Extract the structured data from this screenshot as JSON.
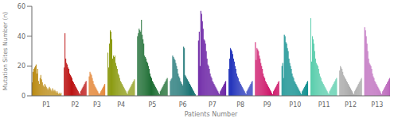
{
  "chart_data": {
    "type": "bar",
    "title": "",
    "xlabel": "Patients Number",
    "ylabel": "Mutation Sites Number (n)",
    "ylim": [
      0,
      60
    ],
    "yticks": [
      0,
      20,
      40,
      60
    ],
    "grid": false,
    "categories": [
      null,
      null,
      null,
      null,
      null,
      null,
      null,
      null,
      null,
      null,
      null,
      null,
      null,
      null,
      null,
      null,
      null,
      null,
      "P1",
      null,
      null,
      null,
      null,
      null,
      null,
      null,
      null,
      null,
      null,
      null,
      null,
      null,
      null,
      null,
      null,
      null,
      null,
      null,
      null,
      null,
      null,
      null,
      null,
      null,
      null,
      null,
      null,
      null,
      null,
      null,
      null,
      null,
      "P2",
      null,
      null,
      null,
      null,
      null,
      null,
      null,
      null,
      null,
      null,
      null,
      null,
      null,
      null,
      null,
      null,
      null,
      null,
      null,
      null,
      null,
      null,
      null,
      null,
      "P3",
      null,
      null,
      null,
      null,
      null,
      null,
      null,
      null,
      null,
      null,
      null,
      null,
      null,
      null,
      null,
      null,
      null,
      null,
      null,
      null,
      null,
      null,
      null,
      null,
      null,
      null,
      null,
      "P4",
      null,
      null,
      null,
      null,
      null,
      null,
      null,
      null,
      null,
      null,
      null,
      null,
      null,
      null,
      null,
      null,
      null,
      null,
      null,
      null,
      null,
      null,
      null,
      null,
      null,
      null,
      null,
      null,
      null,
      null,
      null,
      null,
      null,
      null,
      null,
      null,
      "P5",
      null,
      null,
      null,
      null,
      null,
      null,
      null,
      null,
      null,
      null,
      null,
      null,
      null,
      null,
      null,
      null,
      null,
      null,
      null,
      null,
      null,
      null,
      null,
      null,
      null,
      null,
      null,
      null,
      null,
      null,
      null,
      null,
      null,
      null,
      null,
      "P6",
      null,
      null,
      null,
      null,
      null,
      null,
      null,
      null,
      null,
      null,
      null,
      null,
      null,
      null,
      null,
      null,
      null,
      null,
      null,
      null,
      null,
      null,
      null,
      null,
      null,
      null,
      null,
      null,
      null,
      null,
      null,
      null,
      null,
      null,
      "P7",
      null,
      null,
      null,
      null,
      null,
      null,
      null,
      null,
      null,
      null,
      null,
      null,
      null,
      null,
      null,
      null,
      null,
      null,
      null,
      null,
      null,
      null,
      null,
      null,
      null,
      null,
      null,
      null,
      null,
      null,
      null,
      null,
      "P8",
      null,
      null,
      null,
      null,
      null,
      null,
      null,
      null,
      null,
      null,
      null,
      null,
      null,
      null,
      null,
      null,
      null,
      null,
      null,
      null,
      null,
      null,
      null,
      null,
      null,
      null,
      null,
      null,
      null,
      null,
      "P9",
      null,
      null,
      null,
      null,
      null,
      null,
      null,
      null,
      null,
      null,
      null,
      null,
      null,
      null,
      null,
      null,
      null,
      null,
      null,
      null,
      null,
      null,
      null,
      null,
      null,
      null,
      null,
      null,
      null,
      null,
      null,
      null,
      "P10",
      null,
      null,
      null,
      null,
      null,
      null,
      null,
      null,
      null,
      null,
      null,
      null,
      null,
      null,
      null,
      null,
      null,
      null,
      null,
      null,
      null,
      null,
      null,
      null,
      null,
      null,
      null,
      null,
      null,
      null,
      null,
      null,
      null,
      "P11",
      null,
      null,
      null,
      null,
      null,
      null,
      null,
      null,
      null,
      null,
      null,
      null,
      null,
      null,
      null,
      null,
      null,
      null,
      null,
      null,
      null,
      null,
      null,
      null,
      null,
      null,
      null,
      null,
      null,
      null,
      "P12",
      null,
      null,
      null,
      null,
      null,
      null,
      null,
      null,
      null,
      null,
      null,
      null,
      null,
      null,
      null,
      null,
      null,
      null,
      null,
      null,
      null,
      null,
      null,
      null,
      null,
      null,
      null,
      null,
      null,
      null,
      "P13",
      null,
      null,
      null,
      null,
      null,
      null,
      null,
      null,
      null,
      null,
      null,
      null,
      null,
      null,
      null,
      null
    ],
    "values": [
      9,
      16,
      18,
      19,
      20,
      21,
      15,
      18,
      10,
      8,
      12,
      14,
      11,
      9,
      7,
      6,
      8,
      7,
      6,
      5,
      4,
      5,
      6,
      5,
      4,
      3,
      5,
      4,
      3,
      4,
      3,
      2,
      3,
      2,
      1,
      2,
      1,
      2,
      19,
      42,
      25,
      22,
      21,
      19,
      18,
      15,
      14,
      13,
      12,
      10,
      9,
      8,
      7,
      6,
      5,
      4,
      3,
      2,
      1,
      3,
      4,
      5,
      6,
      7,
      8,
      9,
      10,
      13,
      16,
      15,
      14,
      12,
      10,
      8,
      7,
      6,
      5,
      4,
      3,
      2,
      1,
      2,
      3,
      4,
      5,
      6,
      7,
      8,
      29,
      19,
      35,
      44,
      43,
      38,
      25,
      27,
      26,
      27,
      22,
      20,
      18,
      15,
      14,
      12,
      10,
      9,
      8,
      7,
      6,
      5,
      4,
      3,
      2,
      1,
      3,
      4,
      5,
      6,
      7,
      8,
      9,
      10,
      11,
      40,
      42,
      45,
      44,
      43,
      51,
      41,
      38,
      35,
      27,
      26,
      25,
      23,
      22,
      20,
      18,
      15,
      13,
      12,
      10,
      9,
      8,
      7,
      6,
      5,
      4,
      3,
      2,
      1,
      3,
      4,
      5,
      6,
      7,
      8,
      9,
      10,
      11,
      12,
      10,
      11,
      12,
      27,
      26,
      25,
      24,
      22,
      20,
      18,
      15,
      13,
      12,
      10,
      9,
      8,
      7,
      33,
      32,
      14,
      13,
      12,
      11,
      10,
      9,
      8,
      7,
      6,
      5,
      4,
      3,
      2,
      1,
      37,
      43,
      20,
      57,
      55,
      50,
      45,
      38,
      37,
      35,
      30,
      25,
      21,
      20,
      18,
      15,
      13,
      12,
      10,
      9,
      8,
      7,
      6,
      5,
      4,
      3,
      2,
      1,
      3,
      4,
      5,
      6,
      7,
      8,
      9,
      10,
      18,
      25,
      32,
      31,
      30,
      28,
      25,
      23,
      20,
      18,
      15,
      13,
      12,
      10,
      9,
      8,
      7,
      6,
      5,
      4,
      3,
      2,
      1,
      3,
      4,
      5,
      6,
      7,
      8,
      9,
      10,
      36,
      24,
      32,
      31,
      30,
      27,
      25,
      22,
      20,
      18,
      15,
      13,
      12,
      10,
      9,
      8,
      7,
      6,
      5,
      4,
      3,
      2,
      1,
      3,
      4,
      5,
      6,
      7,
      8,
      9,
      10,
      20,
      22,
      12,
      41,
      40,
      36,
      35,
      32,
      30,
      25,
      22,
      20,
      18,
      15,
      13,
      12,
      10,
      9,
      8,
      7,
      6,
      5,
      4,
      3,
      2,
      1,
      3,
      4,
      5,
      6,
      7,
      8,
      9,
      10,
      52,
      23,
      40,
      38,
      35,
      30,
      25,
      22,
      21,
      20,
      18,
      15,
      13,
      12,
      10,
      9,
      8,
      7,
      6,
      5,
      4,
      3,
      2,
      1,
      3,
      4,
      5,
      6,
      7,
      8,
      9,
      10,
      11,
      12,
      17,
      20,
      19,
      18,
      16,
      14,
      13,
      12,
      11,
      10,
      9,
      8,
      7,
      6,
      5,
      4,
      3,
      2,
      1,
      3,
      4,
      5,
      6,
      7,
      8,
      9,
      10,
      11,
      12,
      46,
      44,
      40,
      35,
      30,
      25,
      22,
      21,
      20,
      18,
      15,
      13,
      12,
      10,
      9,
      8,
      7,
      6,
      5,
      4,
      3,
      2,
      1,
      3,
      4,
      5,
      6,
      7,
      8,
      9,
      10,
      11,
      12
    ],
    "colors": [
      "#b8860b",
      "#b8860b",
      "#b8860b",
      "#b8860b",
      "#b8860b",
      "#b8860b",
      "#b8860b",
      "#b8860b",
      "#b8860b",
      "#b8860b",
      "#b8860b",
      "#b8860b",
      "#b8860b",
      "#b8860b",
      "#b8860b",
      "#b8860b",
      "#b8860b",
      "#b8860b",
      "#b8860b",
      "#b8860b",
      "#b8860b",
      "#b8860b",
      "#b8860b",
      "#b8860b",
      "#b8860b",
      "#b8860b",
      "#b8860b",
      "#b8860b",
      "#b8860b",
      "#b8860b",
      "#b8860b",
      "#b8860b",
      "#b8860b",
      "#b8860b",
      "#b8860b",
      "#b8860b",
      "#b8860b",
      "#b8860b",
      "#bb1111",
      "#bb1111",
      "#bb1111",
      "#bb1111",
      "#bb1111",
      "#bb1111",
      "#bb1111",
      "#bb1111",
      "#bb1111",
      "#bb1111",
      "#bb1111",
      "#bb1111",
      "#bb1111",
      "#bb1111",
      "#bb1111",
      "#bb1111",
      "#bb1111",
      "#bb1111",
      "#bb1111",
      "#bb1111",
      "#bb1111",
      "#bb1111",
      "#bb1111",
      "#bb1111",
      "#bb1111",
      "#bb1111",
      "#bb1111",
      "#bb1111",
      "#bb1111",
      "#e07820",
      "#e07820",
      "#e07820",
      "#e07820",
      "#e07820",
      "#e07820",
      "#e07820",
      "#e07820",
      "#e07820",
      "#e07820",
      "#e07820",
      "#e07820",
      "#e07820",
      "#e07820",
      "#e07820",
      "#e07820",
      "#e07820",
      "#e07820",
      "#e07820",
      "#e07820",
      "#e07820",
      "#8b9a10",
      "#8b9a10",
      "#8b9a10",
      "#8b9a10",
      "#8b9a10",
      "#8b9a10",
      "#8b9a10",
      "#8b9a10",
      "#8b9a10",
      "#8b9a10",
      "#8b9a10",
      "#8b9a10",
      "#8b9a10",
      "#8b9a10",
      "#8b9a10",
      "#8b9a10",
      "#8b9a10",
      "#8b9a10",
      "#8b9a10",
      "#8b9a10",
      "#8b9a10",
      "#8b9a10",
      "#8b9a10",
      "#8b9a10",
      "#8b9a10",
      "#8b9a10",
      "#8b9a10",
      "#8b9a10",
      "#8b9a10",
      "#8b9a10",
      "#8b9a10",
      "#8b9a10",
      "#8b9a10",
      "#8b9a10",
      "#8b9a10",
      "#1a6b30",
      "#1a6b30",
      "#1a6b30",
      "#1a6b30",
      "#1a6b30",
      "#1a6b30",
      "#1a6b30",
      "#1a6b30",
      "#1a6b30",
      "#1a6b30",
      "#1a6b30",
      "#1a6b30",
      "#1a6b30",
      "#1a6b30",
      "#1a6b30",
      "#1a6b30",
      "#1a6b30",
      "#1a6b30",
      "#1a6b30",
      "#1a6b30",
      "#1a6b30",
      "#1a6b30",
      "#1a6b30",
      "#1a6b30",
      "#1a6b30",
      "#1a6b30",
      "#1a6b30",
      "#1a6b30",
      "#1a6b30",
      "#1a6b30",
      "#1a6b30",
      "#1a6b30",
      "#1a6b30",
      "#1a6b30",
      "#1a6b30",
      "#1a6b30",
      "#1a6b30",
      "#1a6b30",
      "#1a6b30",
      "#157070",
      "#157070",
      "#157070",
      "#157070",
      "#157070",
      "#157070",
      "#157070",
      "#157070",
      "#157070",
      "#157070",
      "#157070",
      "#157070",
      "#157070",
      "#157070",
      "#157070",
      "#157070",
      "#157070",
      "#157070",
      "#157070",
      "#157070",
      "#157070",
      "#157070",
      "#157070",
      "#157070",
      "#157070",
      "#157070",
      "#157070",
      "#157070",
      "#157070",
      "#157070",
      "#157070",
      "#157070",
      "#157070",
      "#5a0a9a",
      "#5a0a9a",
      "#5a0a9a",
      "#5a0a9a",
      "#5a0a9a",
      "#5a0a9a",
      "#5a0a9a",
      "#5a0a9a",
      "#5a0a9a",
      "#5a0a9a",
      "#5a0a9a",
      "#5a0a9a",
      "#5a0a9a",
      "#5a0a9a",
      "#5a0a9a",
      "#5a0a9a",
      "#5a0a9a",
      "#5a0a9a",
      "#5a0a9a",
      "#5a0a9a",
      "#5a0a9a",
      "#5a0a9a",
      "#5a0a9a",
      "#5a0a9a",
      "#5a0a9a",
      "#5a0a9a",
      "#5a0a9a",
      "#5a0a9a",
      "#5a0a9a",
      "#5a0a9a",
      "#5a0a9a",
      "#5a0a9a",
      "#5a0a9a",
      "#5a0a9a",
      "#5a0a9a",
      "#5a0a9a",
      "#2233bb",
      "#2233bb",
      "#2233bb",
      "#2233bb",
      "#2233bb",
      "#2233bb",
      "#2233bb",
      "#2233bb",
      "#2233bb",
      "#2233bb",
      "#2233bb",
      "#2233bb",
      "#2233bb",
      "#2233bb",
      "#2233bb",
      "#2233bb",
      "#2233bb",
      "#2233bb",
      "#2233bb",
      "#2233bb",
      "#2233bb",
      "#2233bb",
      "#2233bb",
      "#2233bb",
      "#2233bb",
      "#2233bb",
      "#2233bb",
      "#2233bb",
      "#2233bb",
      "#2233bb",
      "#2233bb",
      "#cc1166",
      "#cc1166",
      "#cc1166",
      "#cc1166",
      "#cc1166",
      "#cc1166",
      "#cc1166",
      "#cc1166",
      "#cc1166",
      "#cc1166",
      "#cc1166",
      "#cc1166",
      "#cc1166",
      "#cc1166",
      "#cc1166",
      "#cc1166",
      "#cc1166",
      "#cc1166",
      "#cc1166",
      "#cc1166",
      "#cc1166",
      "#cc1166",
      "#cc1166",
      "#cc1166",
      "#cc1166",
      "#cc1166",
      "#cc1166",
      "#cc1166",
      "#cc1166",
      "#cc1166",
      "#cc1166",
      "#008888",
      "#008888",
      "#008888",
      "#008888",
      "#008888",
      "#008888",
      "#008888",
      "#008888",
      "#008888",
      "#008888",
      "#008888",
      "#008888",
      "#008888",
      "#008888",
      "#008888",
      "#008888",
      "#008888",
      "#008888",
      "#008888",
      "#008888",
      "#008888",
      "#008888",
      "#008888",
      "#008888",
      "#008888",
      "#008888",
      "#008888",
      "#008888",
      "#008888",
      "#008888",
      "#008888",
      "#008888",
      "#008888",
      "#008888",
      "#55ccaa",
      "#55ccaa",
      "#55ccaa",
      "#55ccaa",
      "#55ccaa",
      "#55ccaa",
      "#55ccaa",
      "#55ccaa",
      "#55ccaa",
      "#55ccaa",
      "#55ccaa",
      "#55ccaa",
      "#55ccaa",
      "#55ccaa",
      "#55ccaa",
      "#55ccaa",
      "#55ccaa",
      "#55ccaa",
      "#55ccaa",
      "#55ccaa",
      "#55ccaa",
      "#55ccaa",
      "#55ccaa",
      "#55ccaa",
      "#55ccaa",
      "#55ccaa",
      "#55ccaa",
      "#55ccaa",
      "#55ccaa",
      "#55ccaa",
      "#55ccaa",
      "#55ccaa",
      "#55ccaa",
      "#55ccaa",
      "#aaaaaa",
      "#aaaaaa",
      "#aaaaaa",
      "#aaaaaa",
      "#aaaaaa",
      "#aaaaaa",
      "#aaaaaa",
      "#aaaaaa",
      "#aaaaaa",
      "#aaaaaa",
      "#aaaaaa",
      "#aaaaaa",
      "#aaaaaa",
      "#aaaaaa",
      "#aaaaaa",
      "#aaaaaa",
      "#aaaaaa",
      "#aaaaaa",
      "#aaaaaa",
      "#aaaaaa",
      "#aaaaaa",
      "#aaaaaa",
      "#aaaaaa",
      "#aaaaaa",
      "#aaaaaa",
      "#aaaaaa",
      "#aaaaaa",
      "#aaaaaa",
      "#aaaaaa",
      "#bb66bb",
      "#bb66bb",
      "#bb66bb",
      "#bb66bb",
      "#bb66bb",
      "#bb66bb",
      "#bb66bb",
      "#bb66bb",
      "#bb66bb",
      "#bb66bb",
      "#bb66bb",
      "#bb66bb",
      "#bb66bb",
      "#bb66bb",
      "#bb66bb",
      "#bb66bb",
      "#bb66bb",
      "#bb66bb",
      "#bb66bb",
      "#bb66bb",
      "#bb66bb",
      "#bb66bb",
      "#bb66bb",
      "#bb66bb",
      "#bb66bb",
      "#bb66bb",
      "#bb66bb",
      "#bb66bb",
      "#bb66bb",
      "#bb66bb",
      "#bb66bb",
      "#bb66bb",
      "#bb66bb"
    ]
  }
}
